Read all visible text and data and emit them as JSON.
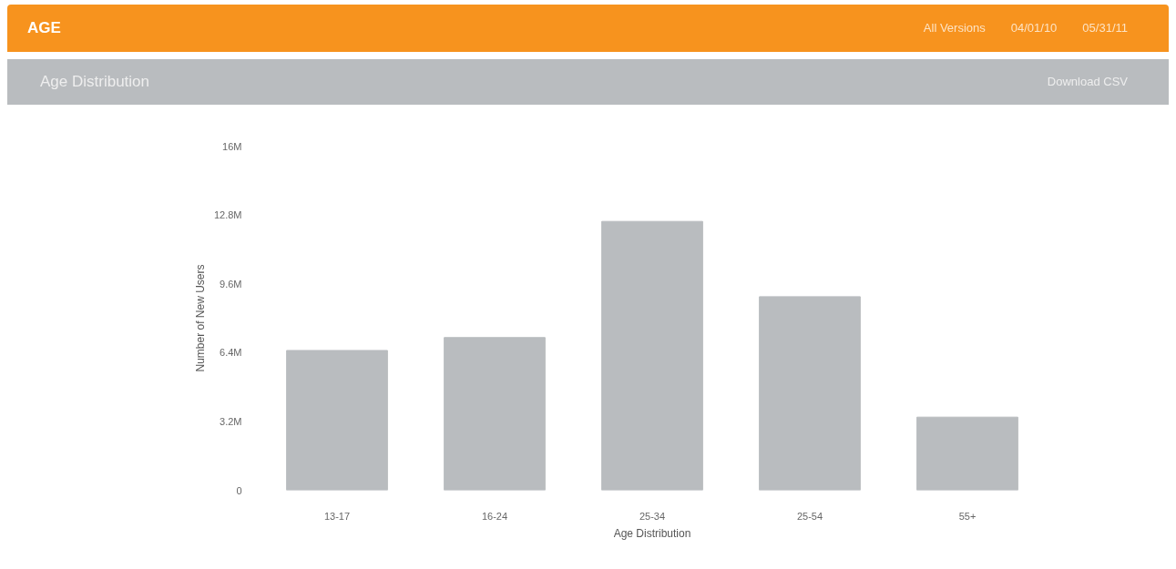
{
  "chart_data": {
    "type": "bar",
    "title": "AGE",
    "subtitle": "Age Distribution",
    "annotations": [
      "All Versions",
      "04/01/10",
      "05/31/11",
      "Download CSV"
    ],
    "xlabel": "Age Distribution",
    "ylabel": "Number of New Users",
    "categories": [
      "13-17",
      "16-24",
      "25-34",
      "25-54",
      "55+"
    ],
    "values": [
      6.5,
      7.1,
      12.5,
      9.0,
      3.4
    ],
    "color": "#b9bcbf",
    "ylim": [
      0,
      16
    ],
    "yticks": [
      0,
      {
        "value": 3.2,
        "label": "3.2M"
      },
      {
        "value": 6.4,
        "label": "6.4M"
      },
      {
        "value": 9.6,
        "label": "9.6M"
      },
      {
        "value": 12.8,
        "label": "12.8M"
      },
      {
        "value": 16,
        "label": "16M"
      }
    ],
    "grid": false
  }
}
